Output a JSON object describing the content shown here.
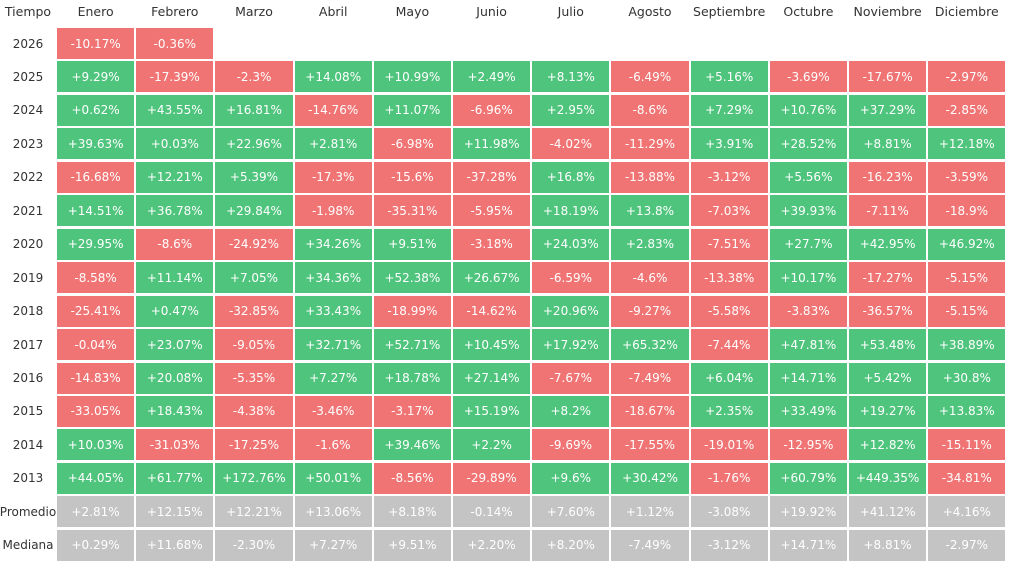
{
  "table": {
    "header": [
      "Tiempo",
      "Enero",
      "Febrero",
      "Marzo",
      "Abril",
      "Mayo",
      "Junio",
      "Julio",
      "Agosto",
      "Septiembre",
      "Octubre",
      "Noviembre",
      "Diciembre"
    ],
    "rows": [
      {
        "label": "2026",
        "cells": [
          "-10.17%",
          "-0.36%"
        ]
      },
      {
        "label": "2025",
        "cells": [
          "+9.29%",
          "-17.39%",
          "-2.3%",
          "+14.08%",
          "+10.99%",
          "+2.49%",
          "+8.13%",
          "-6.49%",
          "+5.16%",
          "-3.69%",
          "-17.67%",
          "-2.97%"
        ]
      },
      {
        "label": "2024",
        "cells": [
          "+0.62%",
          "+43.55%",
          "+16.81%",
          "-14.76%",
          "+11.07%",
          "-6.96%",
          "+2.95%",
          "-8.6%",
          "+7.29%",
          "+10.76%",
          "+37.29%",
          "-2.85%"
        ]
      },
      {
        "label": "2023",
        "cells": [
          "+39.63%",
          "+0.03%",
          "+22.96%",
          "+2.81%",
          "-6.98%",
          "+11.98%",
          "-4.02%",
          "-11.29%",
          "+3.91%",
          "+28.52%",
          "+8.81%",
          "+12.18%"
        ]
      },
      {
        "label": "2022",
        "cells": [
          "-16.68%",
          "+12.21%",
          "+5.39%",
          "-17.3%",
          "-15.6%",
          "-37.28%",
          "+16.8%",
          "-13.88%",
          "-3.12%",
          "+5.56%",
          "-16.23%",
          "-3.59%"
        ]
      },
      {
        "label": "2021",
        "cells": [
          "+14.51%",
          "+36.78%",
          "+29.84%",
          "-1.98%",
          "-35.31%",
          "-5.95%",
          "+18.19%",
          "+13.8%",
          "-7.03%",
          "+39.93%",
          "-7.11%",
          "-18.9%"
        ]
      },
      {
        "label": "2020",
        "cells": [
          "+29.95%",
          "-8.6%",
          "-24.92%",
          "+34.26%",
          "+9.51%",
          "-3.18%",
          "+24.03%",
          "+2.83%",
          "-7.51%",
          "+27.7%",
          "+42.95%",
          "+46.92%"
        ]
      },
      {
        "label": "2019",
        "cells": [
          "-8.58%",
          "+11.14%",
          "+7.05%",
          "+34.36%",
          "+52.38%",
          "+26.67%",
          "-6.59%",
          "-4.6%",
          "-13.38%",
          "+10.17%",
          "-17.27%",
          "-5.15%"
        ]
      },
      {
        "label": "2018",
        "cells": [
          "-25.41%",
          "+0.47%",
          "-32.85%",
          "+33.43%",
          "-18.99%",
          "-14.62%",
          "+20.96%",
          "-9.27%",
          "-5.58%",
          "-3.83%",
          "-36.57%",
          "-5.15%"
        ]
      },
      {
        "label": "2017",
        "cells": [
          "-0.04%",
          "+23.07%",
          "-9.05%",
          "+32.71%",
          "+52.71%",
          "+10.45%",
          "+17.92%",
          "+65.32%",
          "-7.44%",
          "+47.81%",
          "+53.48%",
          "+38.89%"
        ]
      },
      {
        "label": "2016",
        "cells": [
          "-14.83%",
          "+20.08%",
          "-5.35%",
          "+7.27%",
          "+18.78%",
          "+27.14%",
          "-7.67%",
          "-7.49%",
          "+6.04%",
          "+14.71%",
          "+5.42%",
          "+30.8%"
        ]
      },
      {
        "label": "2015",
        "cells": [
          "-33.05%",
          "+18.43%",
          "-4.38%",
          "-3.46%",
          "-3.17%",
          "+15.19%",
          "+8.2%",
          "-18.67%",
          "+2.35%",
          "+33.49%",
          "+19.27%",
          "+13.83%"
        ]
      },
      {
        "label": "2014",
        "cells": [
          "+10.03%",
          "-31.03%",
          "-17.25%",
          "-1.6%",
          "+39.46%",
          "+2.2%",
          "-9.69%",
          "-17.55%",
          "-19.01%",
          "-12.95%",
          "+12.82%",
          "-15.11%"
        ]
      },
      {
        "label": "2013",
        "cells": [
          "+44.05%",
          "+61.77%",
          "+172.76%",
          "+50.01%",
          "-8.56%",
          "-29.89%",
          "+9.6%",
          "+30.42%",
          "-1.76%",
          "+60.79%",
          "+449.35%",
          "-34.81%"
        ]
      }
    ],
    "summary": [
      {
        "label": "Promedio",
        "cells": [
          "+2.81%",
          "+12.15%",
          "+12.21%",
          "+13.06%",
          "+8.18%",
          "-0.14%",
          "+7.60%",
          "+1.12%",
          "-3.08%",
          "+19.92%",
          "+41.12%",
          "+4.16%"
        ]
      },
      {
        "label": "Mediana",
        "cells": [
          "+0.29%",
          "+11.68%",
          "-2.30%",
          "+7.27%",
          "+9.51%",
          "+2.20%",
          "+8.20%",
          "-7.49%",
          "-3.12%",
          "+14.71%",
          "+8.81%",
          "-2.97%"
        ]
      }
    ]
  }
}
